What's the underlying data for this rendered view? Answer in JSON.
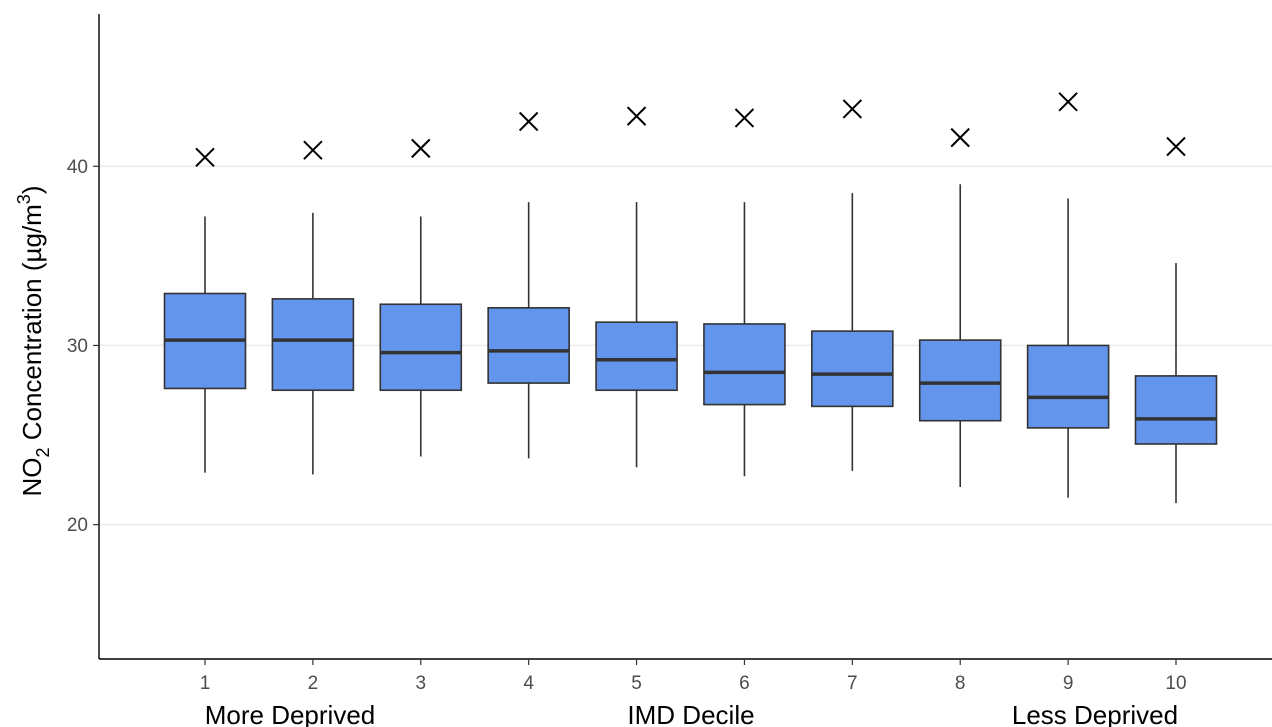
{
  "chart_data": {
    "type": "box",
    "ylabel": {
      "prefix": "NO",
      "subscript": "2",
      "middle": " Concentration (µg/m",
      "superscript": "3",
      "suffix": ")"
    },
    "xlabels": {
      "left": "More Deprived",
      "center": "IMD Decile",
      "right": "Less Deprived"
    },
    "ylim": [
      12.5,
      48.5
    ],
    "yticks": [
      20,
      30,
      40
    ],
    "grid": "horizontal-major",
    "legend": "none",
    "box_color": "#6495ED",
    "line_color": "#333333",
    "categories": [
      "1",
      "2",
      "3",
      "4",
      "5",
      "6",
      "7",
      "8",
      "9",
      "10"
    ],
    "boxes": [
      {
        "category": "1",
        "whisker_low": 22.9,
        "q1": 27.6,
        "median": 30.3,
        "q3": 32.9,
        "whisker_high": 37.2,
        "marker": 40.5
      },
      {
        "category": "2",
        "whisker_low": 22.8,
        "q1": 27.5,
        "median": 30.3,
        "q3": 32.6,
        "whisker_high": 37.4,
        "marker": 40.9
      },
      {
        "category": "3",
        "whisker_low": 23.8,
        "q1": 27.5,
        "median": 29.6,
        "q3": 32.3,
        "whisker_high": 37.2,
        "marker": 41.0
      },
      {
        "category": "4",
        "whisker_low": 23.7,
        "q1": 27.9,
        "median": 29.7,
        "q3": 32.1,
        "whisker_high": 38.0,
        "marker": 42.5
      },
      {
        "category": "5",
        "whisker_low": 23.2,
        "q1": 27.5,
        "median": 29.2,
        "q3": 31.3,
        "whisker_high": 38.0,
        "marker": 42.8
      },
      {
        "category": "6",
        "whisker_low": 22.7,
        "q1": 26.7,
        "median": 28.5,
        "q3": 31.2,
        "whisker_high": 38.0,
        "marker": 42.7
      },
      {
        "category": "7",
        "whisker_low": 23.0,
        "q1": 26.6,
        "median": 28.4,
        "q3": 30.8,
        "whisker_high": 38.5,
        "marker": 43.2
      },
      {
        "category": "8",
        "whisker_low": 22.1,
        "q1": 25.8,
        "median": 27.9,
        "q3": 30.3,
        "whisker_high": 39.0,
        "marker": 41.6
      },
      {
        "category": "9",
        "whisker_low": 21.5,
        "q1": 25.4,
        "median": 27.1,
        "q3": 30.0,
        "whisker_high": 38.2,
        "marker": 43.6
      },
      {
        "category": "10",
        "whisker_low": 21.2,
        "q1": 24.5,
        "median": 25.9,
        "q3": 28.3,
        "whisker_high": 34.6,
        "marker": 41.1
      }
    ]
  }
}
